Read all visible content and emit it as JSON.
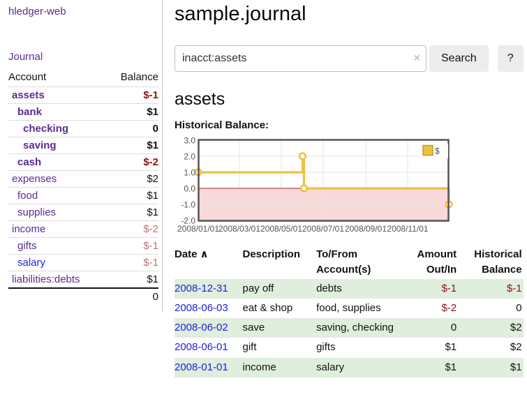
{
  "app": {
    "title": "hledger-web"
  },
  "sidebar": {
    "nav_journal": "Journal",
    "accounts_table": {
      "header_account": "Account",
      "header_balance": "Balance",
      "rows": [
        {
          "name": "assets",
          "indent": 1,
          "bold": true,
          "balance": "$-1",
          "balance_class": "neg",
          "blue": false
        },
        {
          "name": "bank",
          "indent": 2,
          "bold": true,
          "balance": "$1",
          "balance_class": "",
          "blue": false
        },
        {
          "name": "checking",
          "indent": 3,
          "bold": true,
          "balance": "0",
          "balance_class": "",
          "blue": false
        },
        {
          "name": "saving",
          "indent": 3,
          "bold": true,
          "balance": "$1",
          "balance_class": "",
          "blue": false
        },
        {
          "name": "cash",
          "indent": 2,
          "bold": true,
          "balance": "$-2",
          "balance_class": "neg",
          "blue": false
        },
        {
          "name": "expenses",
          "indent": 1,
          "bold": false,
          "balance": "$2",
          "balance_class": "",
          "blue": false
        },
        {
          "name": "food",
          "indent": 2,
          "bold": false,
          "balance": "$1",
          "balance_class": "",
          "blue": false
        },
        {
          "name": "supplies",
          "indent": 2,
          "bold": false,
          "balance": "$1",
          "balance_class": "",
          "blue": false
        },
        {
          "name": "income",
          "indent": 1,
          "bold": false,
          "balance": "$-2",
          "balance_class": "neglight",
          "blue": false
        },
        {
          "name": "gifts",
          "indent": 2,
          "bold": false,
          "balance": "$-1",
          "balance_class": "neglight",
          "blue": false
        },
        {
          "name": "salary",
          "indent": 2,
          "bold": false,
          "balance": "$-1",
          "balance_class": "neglight",
          "blue": true
        },
        {
          "name": "liabilities:debts",
          "indent": 1,
          "bold": false,
          "balance": "$1",
          "balance_class": "",
          "blue": false
        }
      ],
      "total": "0"
    }
  },
  "header": {
    "title": "sample.journal"
  },
  "search": {
    "value": "inacct:assets",
    "clear_icon": "×",
    "search_button": "Search",
    "help_button": "?"
  },
  "account_page": {
    "title": "assets",
    "chart_label": "Historical Balance:"
  },
  "chart_data": {
    "type": "line",
    "title": "Historical Balance:",
    "x": [
      "2008-01-01",
      "2008-06-01",
      "2008-06-03",
      "2008-12-31"
    ],
    "series": [
      {
        "name": "$",
        "color": "#edc240",
        "step": true,
        "values": [
          1,
          2,
          0,
          -1
        ]
      }
    ],
    "ylim": [
      -2,
      3
    ],
    "yticks": [
      "3.0",
      "2.0",
      "1.0",
      "0.0",
      "-1.0",
      "-2.0"
    ],
    "xticks": [
      "2008/01/01",
      "2008/03/01",
      "2008/05/01",
      "2008/07/01",
      "2008/09/01",
      "2008/11/01"
    ],
    "legend": {
      "label": "$",
      "position": "top-right"
    },
    "grid": true,
    "negative_region_fill": "#f8d9d9",
    "zero_line_color": "#992222",
    "border_color": "#545454"
  },
  "register": {
    "headers": {
      "date": "Date",
      "sort_icon": "∧",
      "description": "Description",
      "accounts_line1": "To/From",
      "accounts_line2": "Account(s)",
      "amount_line1": "Amount",
      "amount_line2": "Out/In",
      "balance_line1": "Historical",
      "balance_line2": "Balance"
    },
    "rows": [
      {
        "date": "2008-12-31",
        "description": "pay off",
        "accounts": "debts",
        "amount": "$-1",
        "amount_negative": true,
        "balance": "$-1",
        "balance_negative": true,
        "green": true
      },
      {
        "date": "2008-06-03",
        "description": "eat & shop",
        "accounts": "food, supplies",
        "amount": "$-2",
        "amount_negative": true,
        "balance": "0",
        "balance_negative": false,
        "green": false
      },
      {
        "date": "2008-06-02",
        "description": "save",
        "accounts": "saving, checking",
        "amount": "0",
        "amount_negative": false,
        "balance": "$2",
        "balance_negative": false,
        "green": true
      },
      {
        "date": "2008-06-01",
        "description": "gift",
        "accounts": "gifts",
        "amount": "$1",
        "amount_negative": false,
        "balance": "$2",
        "balance_negative": false,
        "green": false
      },
      {
        "date": "2008-01-01",
        "description": "income",
        "accounts": "salary",
        "amount": "$1",
        "amount_negative": false,
        "balance": "$1",
        "balance_negative": false,
        "green": true
      }
    ]
  }
}
